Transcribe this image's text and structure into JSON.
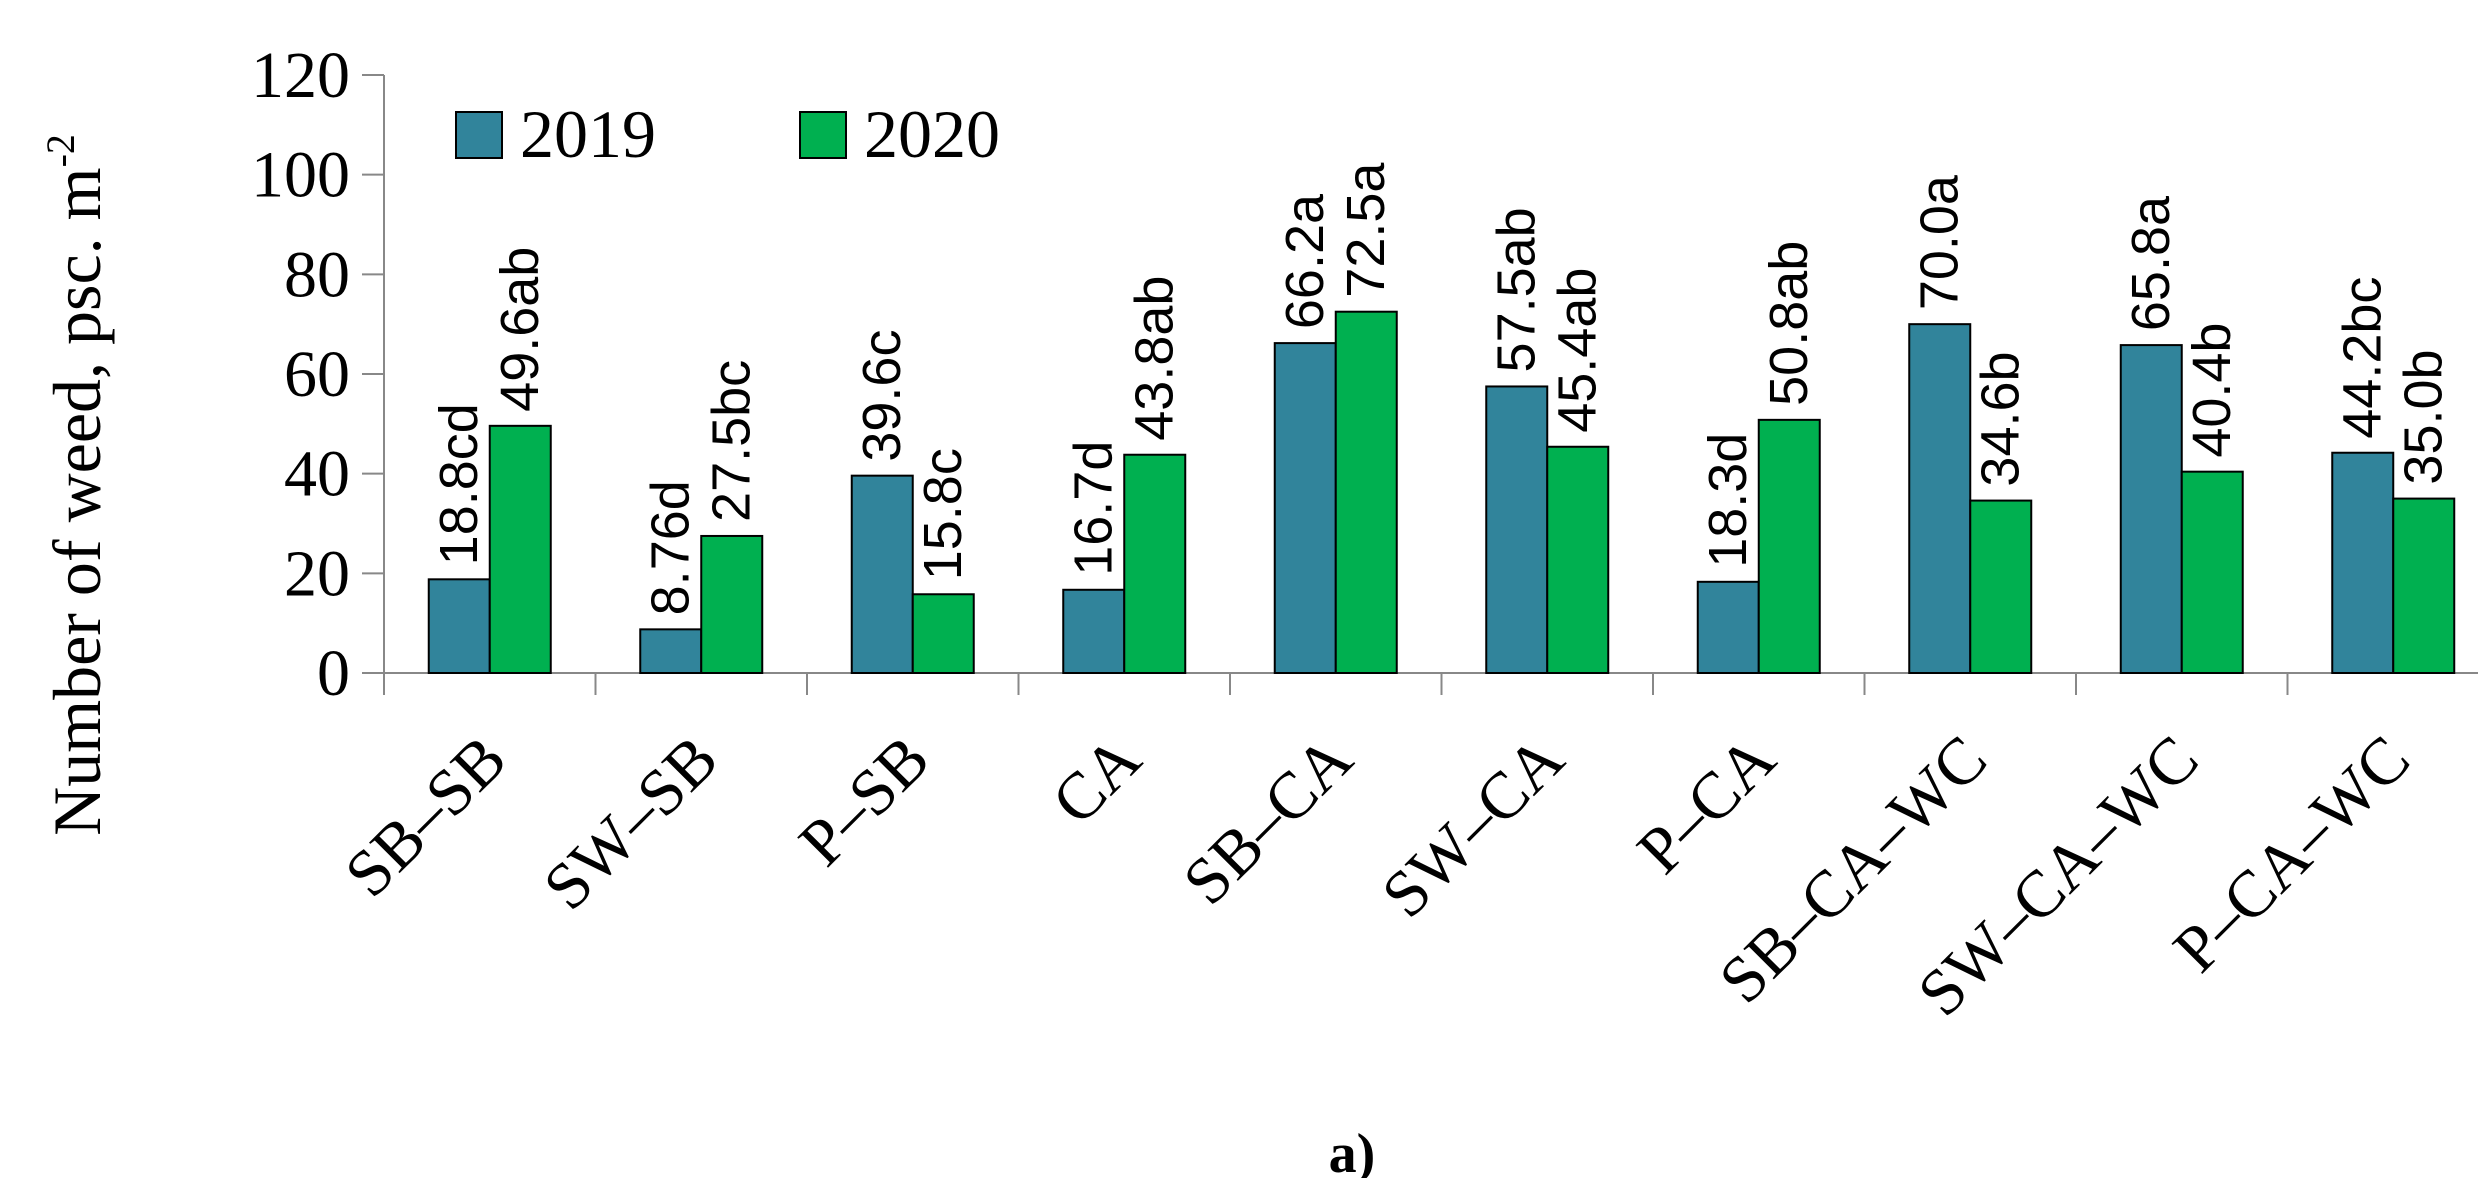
{
  "chart_data": {
    "type": "bar",
    "ylabel": "Number of weed, psc. m",
    "ylabel_superscript": "-2",
    "caption": "a)",
    "ylim": [
      0,
      120
    ],
    "yticks": [
      "0",
      "20",
      "40",
      "60",
      "80",
      "100",
      "120"
    ],
    "categories": [
      "SB–SB",
      "SW–SB",
      "P–SB",
      "CA",
      "SB–CA",
      "SW–CA",
      "P–CA",
      "SB–CA–WC",
      "SW–CA–WC",
      "P–CA–WC"
    ],
    "legend_position": "top-left",
    "grid": false,
    "series": [
      {
        "name": "2019",
        "color": "#31849b",
        "values": [
          18.8,
          8.76,
          39.6,
          16.7,
          66.2,
          57.5,
          18.3,
          70.0,
          65.8,
          44.2
        ],
        "labels": [
          "18.8cd",
          "8.76d",
          "39.6c",
          "16.7d",
          "66.2a",
          "57.5ab",
          "18.3d",
          "70.0a",
          "65.8a",
          "44.2bc"
        ]
      },
      {
        "name": "2020",
        "color": "#00b050",
        "values": [
          49.6,
          27.5,
          15.8,
          43.8,
          72.5,
          45.4,
          50.8,
          34.6,
          40.4,
          35.0
        ],
        "labels": [
          "49.6ab",
          "27.5bc",
          "15.8c",
          "43.8ab",
          "72.5a",
          "45.4ab",
          "50.8ab",
          "34.6b",
          "40.4b",
          "35.0b"
        ]
      }
    ]
  }
}
